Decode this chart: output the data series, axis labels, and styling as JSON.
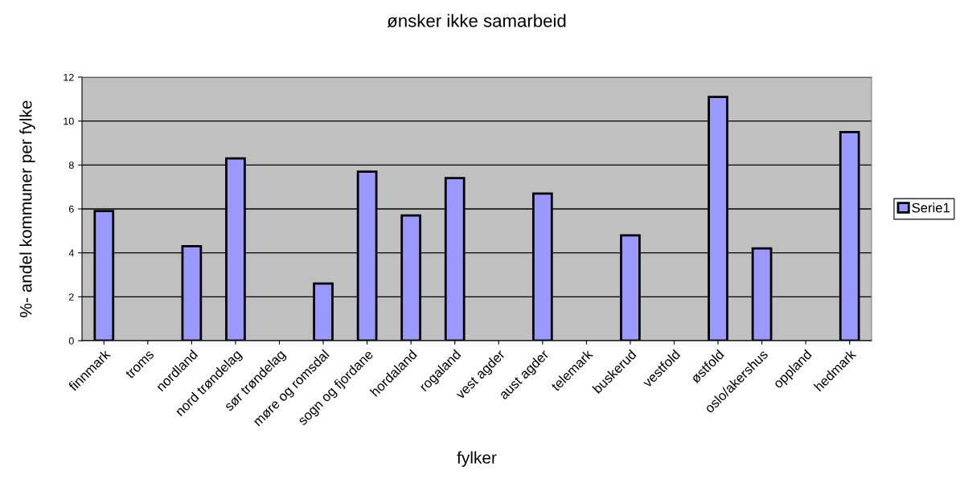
{
  "chart_data": {
    "type": "bar",
    "title": "ønsker ikke samarbeid",
    "xlabel": "fylker",
    "ylabel": "%- andel kommuner per fylke",
    "categories": [
      "finnmark",
      "troms",
      "nordland",
      "nord trøndelag",
      "sør trøndelag",
      "møre og romsdal",
      "sogn og fjordane",
      "hordaland",
      "rogaland",
      "vest agder",
      "aust agder",
      "telemark",
      "buskerud",
      "vestfold",
      "østfold",
      "oslo/akershus",
      "oppland",
      "hedmark"
    ],
    "series": [
      {
        "name": "Serie1",
        "color": "#9999ff",
        "values": [
          5.9,
          0,
          4.3,
          8.3,
          0,
          2.6,
          7.7,
          5.7,
          7.4,
          0,
          6.7,
          0,
          4.8,
          0,
          11.1,
          4.2,
          0,
          9.5
        ]
      }
    ],
    "ylim": [
      0,
      12
    ],
    "yticks": [
      0,
      2,
      4,
      6,
      8,
      10,
      12
    ],
    "grid": "y",
    "legend": "right"
  }
}
